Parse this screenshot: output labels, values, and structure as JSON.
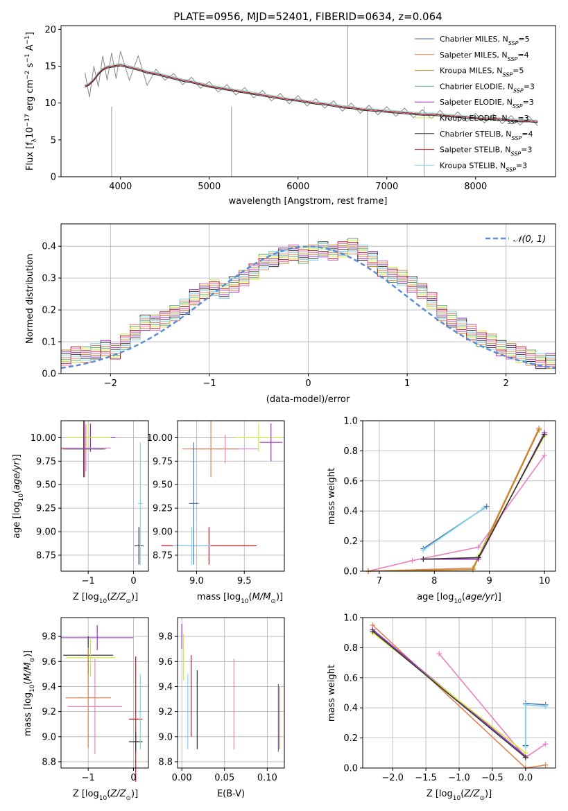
{
  "chart_data": [
    {
      "type": "line",
      "title": "PLATE=0956, MJD=52401, FIBERID=0634, z=0.064",
      "xlabel": "wavelength [Angstrom, rest frame]",
      "ylabel": "Flux [f_λ 10^-17 erg cm^-2 s^-1 A^-1]",
      "xlim": [
        3330,
        8900
      ],
      "ylim": [
        0,
        20.5
      ],
      "xticks": [
        4000,
        5000,
        6000,
        7000,
        8000
      ],
      "yticks": [
        0,
        5,
        10,
        15,
        20
      ],
      "grid": false,
      "legend_position": "top-right",
      "data_series": {
        "name": "data",
        "color": "#888888",
        "x": [
          3600,
          3650,
          3700,
          3750,
          3800,
          3850,
          3900,
          3950,
          4000,
          4100,
          4200,
          4300,
          4400,
          4500,
          4600,
          4700,
          4800,
          4900,
          5000,
          5100,
          5200,
          5300,
          5400,
          5500,
          5600,
          5700,
          5800,
          5900,
          6000,
          6100,
          6200,
          6300,
          6400,
          6500,
          6600,
          6700,
          6800,
          6900,
          7000,
          7100,
          7200,
          7300,
          7400,
          7500,
          7600,
          7700,
          7800,
          7900,
          8000,
          8100,
          8200,
          8300,
          8400,
          8500,
          8600,
          8700
        ],
        "y": [
          12.3,
          12.6,
          13.2,
          14.0,
          14.6,
          14.9,
          15.0,
          15.1,
          15.2,
          14.9,
          14.6,
          14.2,
          14.0,
          13.7,
          13.4,
          13.1,
          12.9,
          12.6,
          12.3,
          12.1,
          11.9,
          11.7,
          11.5,
          11.3,
          11.1,
          10.9,
          10.7,
          10.5,
          10.4,
          10.2,
          10.0,
          9.9,
          9.7,
          9.5,
          9.4,
          9.2,
          9.1,
          9.0,
          8.9,
          8.8,
          8.7,
          8.6,
          8.5,
          8.5,
          8.4,
          8.3,
          8.2,
          8.1,
          8.0,
          7.9,
          7.9,
          7.8,
          7.7,
          7.6,
          7.6,
          7.5
        ]
      },
      "series": [
        {
          "name": "Chabrier MILES, N_SSP=5",
          "color": "#4c72b0"
        },
        {
          "name": "Salpeter MILES, N_SSP=4",
          "color": "#dd8452"
        },
        {
          "name": "Kroupa MILES, N_SSP=5",
          "color": "#c1851a"
        },
        {
          "name": "Chabrier ELODIE, N_SSP=3",
          "color": "#55a868"
        },
        {
          "name": "Salpeter ELODIE, N_SSP=3",
          "color": "#9b30c0"
        },
        {
          "name": "Kroupa ELODIE, N_SSP=3",
          "color": "#d4e83a"
        },
        {
          "name": "Chabrier STELIB, N_SSP=4",
          "color": "#333333"
        },
        {
          "name": "Salpeter STELIB, N_SSP=3",
          "color": "#c0151b"
        },
        {
          "name": "Kroupa STELIB, N_SSP=3",
          "color": "#7fd4e8"
        }
      ],
      "legend_labels": [
        {
          "pre": "Chabrier MILES, N",
          "sub": "SSP",
          "post": "=5"
        },
        {
          "pre": "Salpeter MILES, N",
          "sub": "SSP",
          "post": "=4"
        },
        {
          "pre": "Kroupa MILES, N",
          "sub": "SSP",
          "post": "=5"
        },
        {
          "pre": "Chabrier ELODIE, N",
          "sub": "SSP",
          "post": "=3"
        },
        {
          "pre": "Salpeter ELODIE, N",
          "sub": "SSP",
          "post": "=3"
        },
        {
          "pre": "Kroupa ELODIE, N",
          "sub": "SSP",
          "post": "=3"
        },
        {
          "pre": "Chabrier STELIB, N",
          "sub": "SSP",
          "post": "=4"
        },
        {
          "pre": "Salpeter STELIB, N",
          "sub": "SSP",
          "post": "=3"
        },
        {
          "pre": "Kroupa STELIB, N",
          "sub": "SSP",
          "post": "=3"
        }
      ]
    },
    {
      "type": "line",
      "xlabel": "(data-model)/error",
      "ylabel": "Normed distribution",
      "xlim": [
        -2.5,
        2.5
      ],
      "ylim": [
        0,
        0.47
      ],
      "xticks": [
        -2,
        -1,
        0,
        1,
        2
      ],
      "yticks": [
        0.0,
        0.1,
        0.2,
        0.3,
        0.4
      ],
      "grid": true,
      "legend_position": "top-right",
      "legend_label": "N(0,1)",
      "gaussian_color": "#5b8ddb",
      "histogram_base": [
        0.05,
        0.06,
        0.06,
        0.07,
        0.08,
        0.07,
        0.1,
        0.13,
        0.16,
        0.16,
        0.17,
        0.19,
        0.21,
        0.24,
        0.26,
        0.27,
        0.26,
        0.28,
        0.3,
        0.32,
        0.35,
        0.36,
        0.37,
        0.38,
        0.37,
        0.38,
        0.39,
        0.38,
        0.39,
        0.4,
        0.38,
        0.36,
        0.33,
        0.31,
        0.3,
        0.28,
        0.26,
        0.23,
        0.19,
        0.17,
        0.15,
        0.13,
        0.11,
        0.1,
        0.08,
        0.07,
        0.06,
        0.05,
        0.04,
        0.04
      ]
    },
    {
      "type": "scatter",
      "xlabel": "Z [log10(Z/Z⊙)]",
      "ylabel": "age [log10(age/yr)]",
      "xlim": [
        -1.6,
        0.33
      ],
      "ylim": [
        8.58,
        10.18
      ],
      "xticks": [
        -1,
        0
      ],
      "yticks": [
        8.75,
        9.0,
        9.25,
        9.5,
        9.75,
        10.0
      ],
      "points": [
        {
          "x": -0.95,
          "y": 10.0,
          "xerr": 0.55,
          "yerr": 0.15,
          "color": "#9b30c0"
        },
        {
          "x": -1.0,
          "y": 10.0,
          "xerr": 0.5,
          "yerr": 0.15,
          "color": "#d4e83a"
        },
        {
          "x": -1.1,
          "y": 9.88,
          "xerr": 0.5,
          "yerr": 0.3,
          "color": "#dd8452"
        },
        {
          "x": -1.05,
          "y": 9.89,
          "xerr": 0.55,
          "yerr": 0.25,
          "color": "#ea7fbf"
        },
        {
          "x": -1.1,
          "y": 9.88,
          "xerr": 0.45,
          "yerr": 0.3,
          "color": "#c0151b"
        },
        {
          "x": -1.08,
          "y": 9.88,
          "xerr": 0.45,
          "yerr": 0.3,
          "color": "#4c72b0"
        },
        {
          "x": 0.12,
          "y": 8.85,
          "xerr": 0.1,
          "yerr": 0.2,
          "color": "#333333"
        },
        {
          "x": 0.15,
          "y": 9.3,
          "xerr": 0.05,
          "yerr": 0.65,
          "color": "#7fd4e8"
        }
      ]
    },
    {
      "type": "scatter",
      "xlabel": "mass [log10(M/M⊙)]",
      "xlim": [
        8.8,
        9.92
      ],
      "ylim": [
        8.58,
        10.18
      ],
      "xticks": [
        9.0,
        9.5
      ],
      "yticks": [
        8.75,
        9.0,
        9.25,
        9.5,
        9.75,
        10.0
      ],
      "points": [
        {
          "x": 9.65,
          "y": 10.0,
          "xerr": 0.25,
          "yerr": 0.15,
          "color": "#d4e83a"
        },
        {
          "x": 9.78,
          "y": 9.95,
          "xerr": 0.12,
          "yerr": 0.2,
          "color": "#9b30c0"
        },
        {
          "x": 9.3,
          "y": 9.88,
          "xerr": 0.35,
          "yerr": 0.15,
          "color": "#ea7fbf"
        },
        {
          "x": 9.15,
          "y": 9.88,
          "xerr": 0.3,
          "yerr": 0.3,
          "color": "#dd8452"
        },
        {
          "x": 9.13,
          "y": 8.85,
          "xerr": 0.5,
          "yerr": 0.2,
          "color": "#c0151b"
        },
        {
          "x": 8.95,
          "y": 8.85,
          "xerr": 0.2,
          "yerr": 0.2,
          "color": "#7fd4e8"
        },
        {
          "x": 8.97,
          "y": 9.3,
          "xerr": 0.05,
          "yerr": 0.65,
          "color": "#4c72b0"
        }
      ]
    },
    {
      "type": "line",
      "xlabel": "age [log10(age/yr)]",
      "ylabel": "mass weight",
      "xlim": [
        6.7,
        10.2
      ],
      "ylim": [
        0,
        1.0
      ],
      "xticks": [
        7,
        8,
        9,
        10
      ],
      "yticks": [
        0.0,
        0.2,
        0.4,
        0.6,
        0.8,
        1.0
      ],
      "grid": true,
      "series": [
        {
          "color": "#ea7fbf",
          "x": [
            6.8,
            7.6,
            8.8,
            10.0
          ],
          "y": [
            0.0,
            0.07,
            0.16,
            0.77
          ]
        },
        {
          "color": "#dd8452",
          "x": [
            6.8,
            8.7,
            9.9
          ],
          "y": [
            0.0,
            0.02,
            0.95
          ]
        },
        {
          "color": "#c1851a",
          "x": [
            6.8,
            8.7,
            9.9
          ],
          "y": [
            0.0,
            0.01,
            0.94
          ]
        },
        {
          "color": "#9b30c0",
          "x": [
            7.8,
            8.8,
            10.0
          ],
          "y": [
            0.08,
            0.08,
            0.92
          ]
        },
        {
          "color": "#d4e83a",
          "x": [
            8.8,
            10.0
          ],
          "y": [
            0.1,
            0.9
          ]
        },
        {
          "color": "#333333",
          "x": [
            7.8,
            8.8,
            10.0
          ],
          "y": [
            0.08,
            0.09,
            0.91
          ]
        },
        {
          "color": "#4c72b0",
          "x": [
            7.8,
            8.95
          ],
          "y": [
            0.15,
            0.43
          ]
        },
        {
          "color": "#7fd4e8",
          "x": [
            7.8,
            8.9
          ],
          "y": [
            0.14,
            0.42
          ]
        }
      ]
    },
    {
      "type": "scatter",
      "xlabel": "Z [log10(Z/Z⊙)]",
      "ylabel": "mass [log10(M/M⊙)]",
      "xlim": [
        -1.6,
        0.33
      ],
      "ylim": [
        8.75,
        9.95
      ],
      "xticks": [
        -1,
        0
      ],
      "yticks": [
        8.8,
        9.0,
        9.2,
        9.4,
        9.6,
        9.8
      ],
      "points": [
        {
          "x": -0.8,
          "y": 9.79,
          "xerr": 0.8,
          "yerr": 0.1,
          "color": "#9b30c0"
        },
        {
          "x": -1.0,
          "y": 9.65,
          "xerr": 0.55,
          "yerr": 0.15,
          "color": "#333333"
        },
        {
          "x": -0.95,
          "y": 9.63,
          "xerr": 0.55,
          "yerr": 0.15,
          "color": "#d4e83a"
        },
        {
          "x": -1.0,
          "y": 9.31,
          "xerr": 0.5,
          "yerr": 0.4,
          "color": "#dd8452"
        },
        {
          "x": -0.85,
          "y": 9.24,
          "xerr": 0.6,
          "yerr": 0.38,
          "color": "#ea7fbf"
        },
        {
          "x": 0.05,
          "y": 9.14,
          "xerr": 0.15,
          "yerr": 0.5,
          "color": "#c0151b"
        },
        {
          "x": 0.05,
          "y": 8.96,
          "xerr": 0.15,
          "yerr": 0.08,
          "color": "#333333"
        },
        {
          "x": 0.15,
          "y": 9.2,
          "xerr": 0.05,
          "yerr": 0.3,
          "color": "#7fd4e8"
        }
      ]
    },
    {
      "type": "scatter",
      "xlabel": "E(B-V)",
      "xlim": [
        -0.005,
        0.12
      ],
      "ylim": [
        8.75,
        9.95
      ],
      "xticks": [
        0.0,
        0.05,
        0.1
      ],
      "yticks": [
        8.8,
        9.0,
        9.2,
        9.4,
        9.6,
        9.8
      ],
      "segments": [
        {
          "x": 0.0,
          "y0": 9.7,
          "y1": 9.9,
          "color": "#9b30c0"
        },
        {
          "x": 0.002,
          "y0": 9.45,
          "y1": 9.82,
          "color": "#d4e83a"
        },
        {
          "x": 0.007,
          "y0": 8.9,
          "y1": 9.5,
          "color": "#7fd4e8"
        },
        {
          "x": 0.011,
          "y0": 9.0,
          "y1": 9.65,
          "color": "#c0151b"
        },
        {
          "x": 0.018,
          "y0": 8.9,
          "y1": 9.53,
          "color": "#333333"
        },
        {
          "x": 0.061,
          "y0": 8.9,
          "y1": 9.62,
          "color": "#ea7fbf"
        },
        {
          "x": 0.113,
          "y0": 8.88,
          "y1": 9.42,
          "color": "#4c72b0"
        },
        {
          "x": 0.114,
          "y0": 8.9,
          "y1": 9.4,
          "color": "#dd8452"
        }
      ]
    },
    {
      "type": "line",
      "xlabel": "Z [log10(Z/Z⊙)]",
      "ylabel": "mass weight",
      "xlim": [
        -2.45,
        0.45
      ],
      "ylim": [
        0,
        1.0
      ],
      "xticks": [
        -2.0,
        -1.5,
        -1.0,
        -0.5,
        0.0
      ],
      "yticks": [
        0.0,
        0.2,
        0.4,
        0.6,
        0.8,
        1.0
      ],
      "grid": true,
      "series": [
        {
          "color": "#ea7fbf",
          "x": [
            -1.3,
            0.0,
            0.3
          ],
          "y": [
            0.76,
            0.07,
            0.16
          ]
        },
        {
          "color": "#dd8452",
          "x": [
            -2.3,
            0.0,
            0.3
          ],
          "y": [
            0.95,
            0.0,
            0.02
          ]
        },
        {
          "color": "#9b30c0",
          "x": [
            -2.3,
            0.0
          ],
          "y": [
            0.92,
            0.08
          ]
        },
        {
          "color": "#d4e83a",
          "x": [
            -2.3,
            0.0
          ],
          "y": [
            0.9,
            0.1
          ]
        },
        {
          "color": "#333333",
          "x": [
            -2.3,
            0.0
          ],
          "y": [
            0.91,
            0.07
          ]
        },
        {
          "color": "#4c72b0",
          "x": [
            0.0,
            0.0,
            0.3
          ],
          "y": [
            0.15,
            0.43,
            0.42
          ]
        },
        {
          "color": "#7fd4e8",
          "x": [
            0.0,
            0.0,
            0.3
          ],
          "y": [
            0.14,
            0.42,
            0.41
          ]
        }
      ]
    }
  ]
}
